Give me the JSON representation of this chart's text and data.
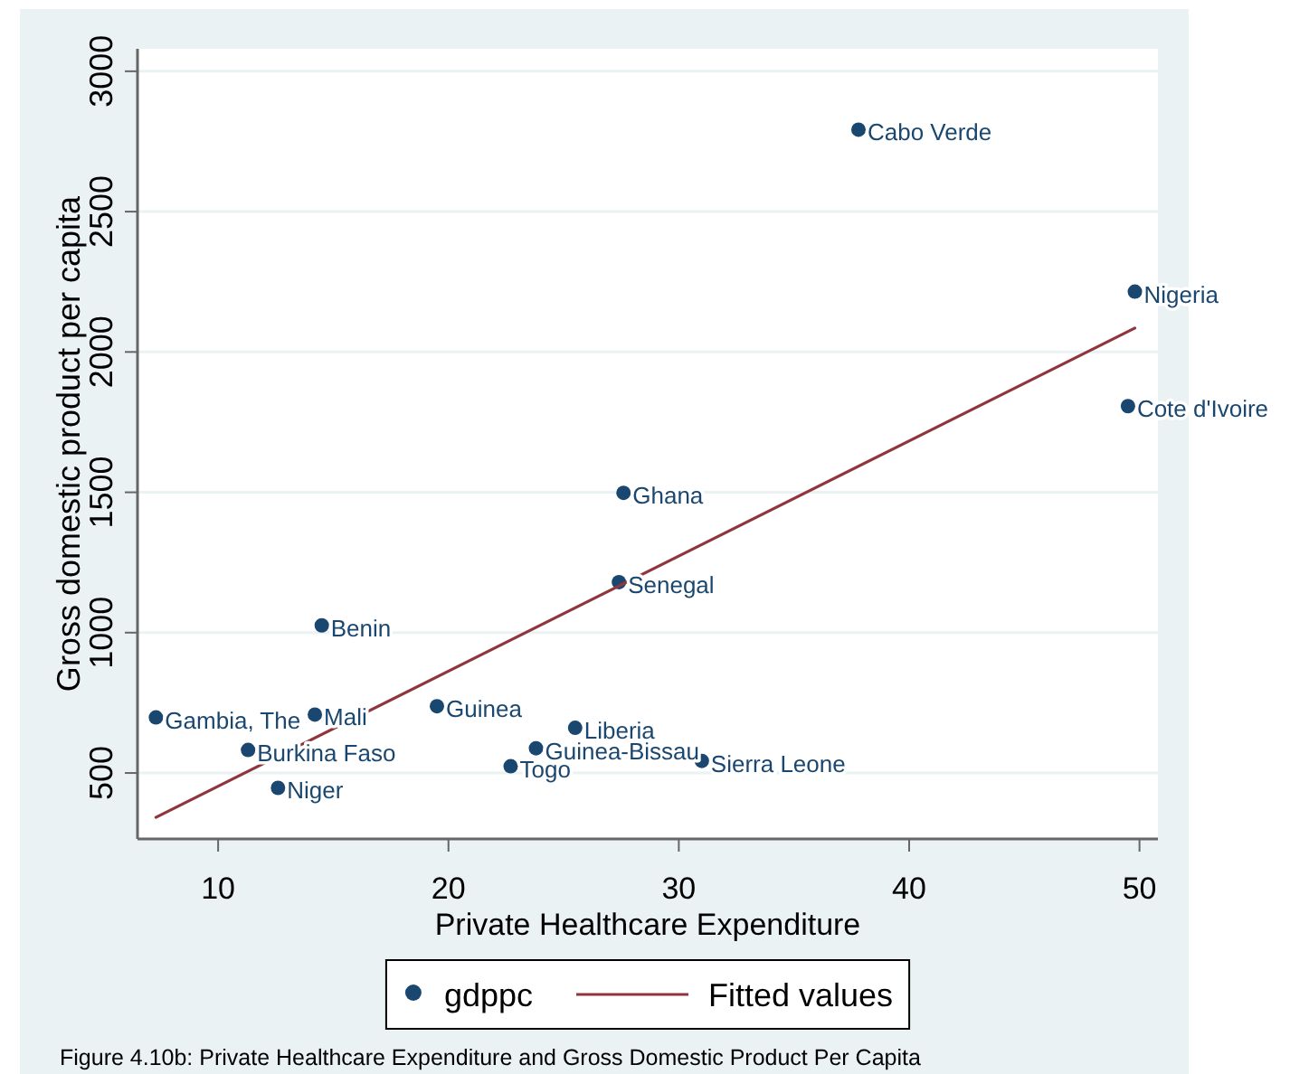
{
  "chart_data": {
    "type": "scatter",
    "xlabel": "Private Healthcare Expenditure",
    "ylabel": "Gross domestic product per capita",
    "annotations": [
      "Figure 4.10b: Private Healthcare Expenditure and Gross Domestic Product Per Capita"
    ],
    "xlim": [
      6.5,
      50.8
    ],
    "ylim": [
      265,
      3080
    ],
    "xticks": [
      10,
      20,
      30,
      40,
      50
    ],
    "yticks": [
      500,
      1000,
      1500,
      2000,
      2500,
      3000
    ],
    "grid": "y",
    "legend": "bottom",
    "series": [
      {
        "name": "gdppc",
        "type": "scatter",
        "color": "#1a476f",
        "marker": "circle",
        "x": [
          7.3,
          11.3,
          12.6,
          14.2,
          14.5,
          19.5,
          22.7,
          23.8,
          25.5,
          27.4,
          27.6,
          31.0,
          37.8,
          49.5,
          49.8
        ],
        "values": [
          698,
          582,
          447,
          708,
          1026,
          738,
          524,
          588,
          661,
          1180,
          1498,
          543,
          2792,
          1807,
          2215
        ],
        "value_labels": [
          "Gambia, The",
          "Burkina Faso",
          "Niger",
          "Mali",
          "Benin",
          "Guinea",
          "Togo",
          "Guinea-Bissau",
          "Liberia",
          "Senegal",
          "Ghana",
          "Sierra Leone",
          "Cabo Verde",
          "Cote d'Ivoire",
          "Nigeria"
        ]
      },
      {
        "name": "Fitted values",
        "type": "line",
        "color": "#90353b",
        "line_style": "solid",
        "x": [
          7.3,
          49.8
        ],
        "values": [
          342,
          2085
        ]
      }
    ]
  }
}
